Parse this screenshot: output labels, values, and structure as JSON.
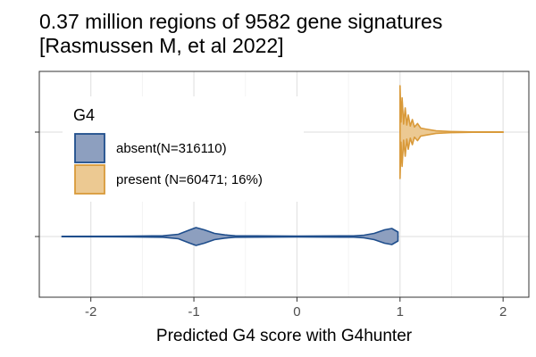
{
  "chart_data": {
    "type": "violin",
    "title": "0.37 million regions of 9582 gene signatures",
    "subtitle": "[Rasmussen M, et al 2022]",
    "xlabel": "Predicted G4 score with G4hunter",
    "ylabel": "",
    "xlim": [
      -2.5,
      2.25
    ],
    "x_ticks": [
      "-2",
      "-1",
      "0",
      "1",
      "2"
    ],
    "x_tick_values": [
      -2,
      -1,
      0,
      1,
      2
    ],
    "grid": true,
    "legend": {
      "title": "G4",
      "position": "top-left",
      "entries": [
        "absent(N=316110)",
        "present (N=60471; 16%)"
      ]
    },
    "series": [
      {
        "name": "absent(N=316110)",
        "color_line": "#1f4e8c",
        "color_fill": "#8d9fbf",
        "row": "bottom",
        "range": [
          -2.28,
          0.98
        ],
        "density": [
          [
            -2.28,
            0.02
          ],
          [
            -1.6,
            0.04
          ],
          [
            -1.3,
            0.08
          ],
          [
            -1.15,
            0.25
          ],
          [
            -1.05,
            0.7
          ],
          [
            -0.98,
            1.0
          ],
          [
            -0.9,
            0.75
          ],
          [
            -0.8,
            0.35
          ],
          [
            -0.7,
            0.18
          ],
          [
            -0.6,
            0.08
          ],
          [
            0.0,
            0.05
          ],
          [
            0.55,
            0.07
          ],
          [
            0.65,
            0.15
          ],
          [
            0.75,
            0.35
          ],
          [
            0.85,
            0.75
          ],
          [
            0.92,
            0.9
          ],
          [
            0.98,
            0.5
          ]
        ]
      },
      {
        "name": "present (N=60471; 16%)",
        "color_line": "#d99a3a",
        "color_fill": "#ecc992",
        "row": "top",
        "range": [
          1.0,
          2.0
        ],
        "density": [
          [
            1.0,
            4.6
          ],
          [
            1.01,
            1.0
          ],
          [
            1.02,
            3.4
          ],
          [
            1.035,
            0.8
          ],
          [
            1.05,
            2.4
          ],
          [
            1.065,
            0.7
          ],
          [
            1.08,
            1.7
          ],
          [
            1.1,
            0.6
          ],
          [
            1.12,
            1.25
          ],
          [
            1.14,
            0.5
          ],
          [
            1.17,
            0.85
          ],
          [
            1.2,
            0.4
          ],
          [
            1.25,
            0.3
          ],
          [
            1.35,
            0.12
          ],
          [
            1.5,
            0.05
          ],
          [
            1.7,
            0.02
          ],
          [
            2.0,
            0.02
          ]
        ]
      }
    ]
  }
}
